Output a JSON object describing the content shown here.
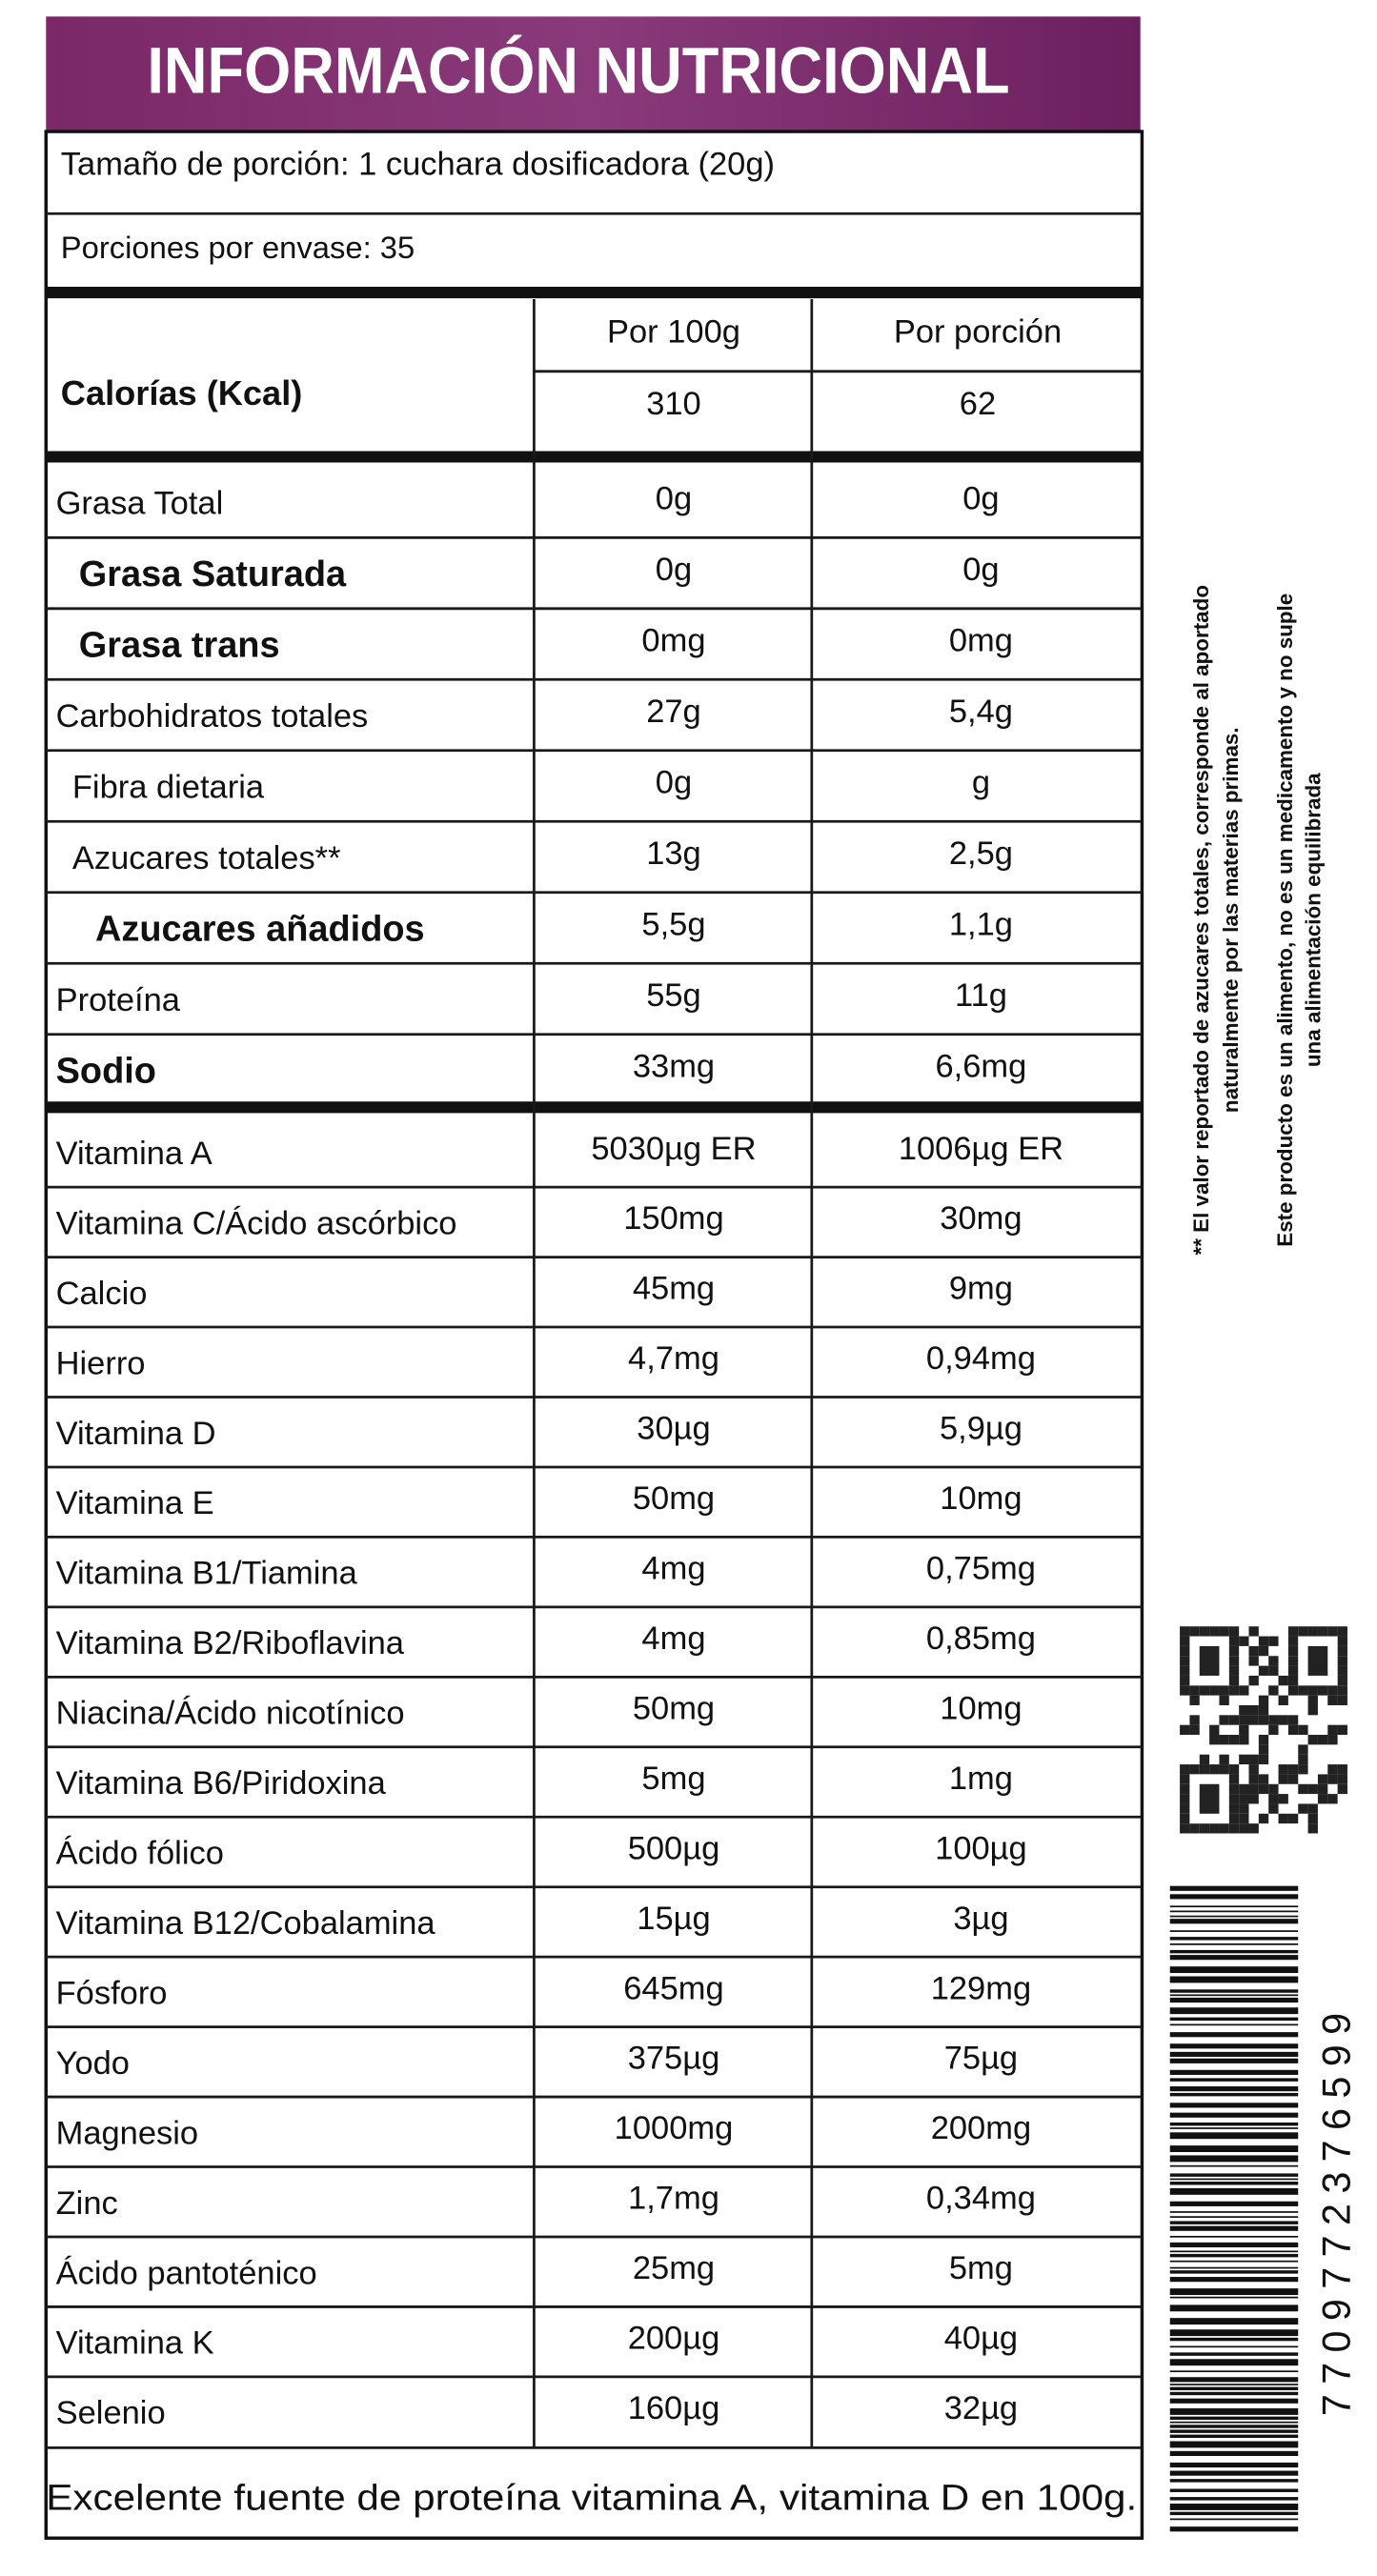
{
  "header": {
    "title": "INFORMACIÓN NUTRICIONAL"
  },
  "serving_size": "Tamaño de porción: 1 cuchara dosificadora (20g)",
  "servings": "Porciones por envase: 35",
  "columns": [
    "Por 100g",
    "Por porción"
  ],
  "calories": [
    "Calorías (Kcal)",
    "310",
    "62"
  ],
  "nutrients": [
    [
      "Grasa Total",
      "0g",
      "0g"
    ],
    [
      "Grasa Saturada",
      "0g",
      "0g"
    ],
    [
      "Grasa trans",
      "0mg",
      "0mg"
    ],
    [
      "Carbohidratos totales",
      "27g",
      "5,4g"
    ],
    [
      "Fibra dietaria",
      "0g",
      "g"
    ],
    [
      "Azucares totales**",
      "13g",
      "2,5g"
    ],
    [
      "Azucares añadidos",
      "5,5g",
      "1,1g"
    ],
    [
      "Proteína",
      "55g",
      "11g"
    ],
    [
      "Sodio",
      "33mg",
      "6,6mg"
    ]
  ],
  "vitamins": [
    [
      "Vitamina A",
      "5030µg ER",
      "1006µg ER"
    ],
    [
      "Vitamina C/Ácido ascórbico",
      "150mg",
      "30mg"
    ],
    [
      "Calcio",
      "45mg",
      "9mg"
    ],
    [
      "Hierro",
      "4,7mg",
      "0,94mg"
    ],
    [
      "Vitamina D",
      "30µg",
      "5,9µg"
    ],
    [
      "Vitamina E",
      "50mg",
      "10mg"
    ],
    [
      "Vitamina B1/Tiamina",
      "4mg",
      "0,75mg"
    ],
    [
      "Vitamina B2/Riboflavina",
      "4mg",
      "0,85mg"
    ],
    [
      "Niacina/Ácido nicotínico",
      "50mg",
      "10mg"
    ],
    [
      "Vitamina B6/Piridoxina",
      "5mg",
      "1mg"
    ],
    [
      "Ácido fólico",
      "500µg",
      "100µg"
    ],
    [
      "Vitamina B12/Cobalamina",
      "15µg",
      "3µg"
    ],
    [
      "Fósforo",
      "645mg",
      "129mg"
    ],
    [
      "Yodo",
      "375µg",
      "75µg"
    ],
    [
      "Magnesio",
      "1000mg",
      "200mg"
    ],
    [
      "Zinc",
      "1,7mg",
      "0,34mg"
    ],
    [
      "Ácido pantoténico",
      "25mg",
      "5mg"
    ],
    [
      "Vitamina K",
      "200µg",
      "40µg"
    ],
    [
      "Selenio",
      "160µg",
      "32µg"
    ]
  ],
  "footer": "Excelente fuente de proteína vitamina A, vitamina D en 100g.",
  "side_notes": [
    "** El valor reportado de azucares totales, corresponde al aportado",
    "naturalmente por las materias primas.",
    "Este producto es un alimento, no es un medicamento y no suple",
    "una alimentación equilibrada"
  ],
  "barcode_number": "7709772376599"
}
